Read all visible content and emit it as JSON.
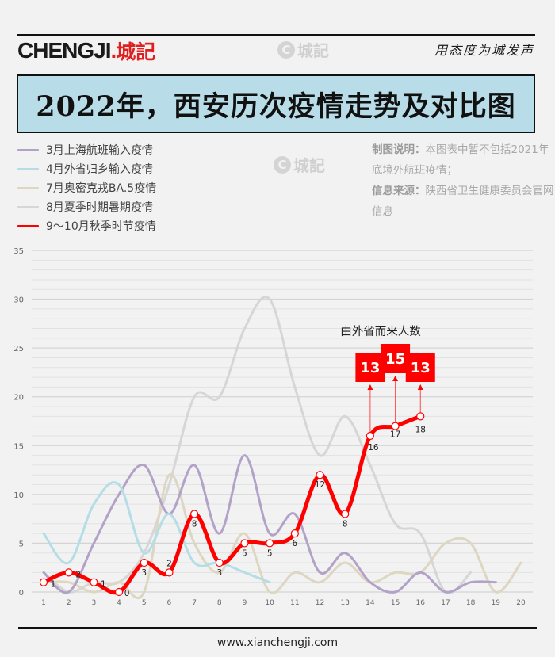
{
  "header": {
    "logo_en": "CHENGJI",
    "logo_dot": ".",
    "logo_cn": "城記",
    "watermark_icon": "C",
    "watermark_text": "城記",
    "slogan": "用态度为城发声"
  },
  "title": "2022年，西安历次疫情走势及对比图",
  "notes": {
    "label1": "制图说明：",
    "text1": "本图表中暂不包括2021年底境外航班疫情；",
    "label2": "信息来源：",
    "text2": "陕西省卫生健康委员会官网信息"
  },
  "legend": [
    {
      "label": "3月上海航班输入疫情",
      "color": "#b3a2c8"
    },
    {
      "label": "4月外省归乡输入疫情",
      "color": "#b4dde6"
    },
    {
      "label": "7月奥密克戎BA.5疫情",
      "color": "#ddd6c1"
    },
    {
      "label": "8月夏季时期暑期疫情",
      "color": "#d6d6d6"
    },
    {
      "label": "9～10月秋季时节疫情",
      "color": "#ff0000"
    }
  ],
  "annotation": {
    "title": "由外省而来人数",
    "boxes": [
      {
        "x": 14,
        "value": "13"
      },
      {
        "x": 15,
        "value": "15"
      },
      {
        "x": 16,
        "value": "13"
      }
    ]
  },
  "footer": "www.xianchengji.com",
  "chart_data": {
    "type": "line",
    "title": "2022年，西安历次疫情走势及对比图",
    "xlabel": "",
    "ylabel": "",
    "x": [
      1,
      2,
      3,
      4,
      5,
      6,
      7,
      8,
      9,
      10,
      11,
      12,
      13,
      14,
      15,
      16,
      17,
      18,
      19,
      20
    ],
    "ylim": [
      0,
      35
    ],
    "yticks": [
      0,
      5,
      10,
      15,
      20,
      25,
      30,
      35
    ],
    "grid": true,
    "minor_grid_step": 1,
    "legend_position": "top-left",
    "smooth": true,
    "series": [
      {
        "name": "3月上海航班输入疫情",
        "color": "#b3a2c8",
        "values": [
          2,
          0,
          5,
          10,
          13,
          8,
          13,
          6,
          14,
          6,
          8,
          2,
          4,
          1,
          0,
          2,
          0,
          1,
          1,
          null
        ]
      },
      {
        "name": "4月外省归乡输入疫情",
        "color": "#b4dde6",
        "values": [
          6,
          3,
          9,
          11,
          4,
          8,
          3,
          3,
          2,
          1,
          null,
          null,
          null,
          null,
          null,
          null,
          null,
          null,
          null,
          null
        ]
      },
      {
        "name": "7月奥密克戎BA.5疫情",
        "color": "#ddd6c1",
        "values": [
          1,
          1,
          0,
          1,
          0,
          12,
          5,
          2,
          6,
          0,
          2,
          1,
          3,
          1,
          2,
          2,
          5,
          5,
          0,
          3
        ]
      },
      {
        "name": "8月夏季时期暑期疫情",
        "color": "#d6d6d6",
        "values": [
          2,
          0,
          1,
          1,
          4,
          11,
          20,
          20,
          27,
          30,
          21,
          14,
          18,
          13,
          7,
          6,
          0,
          2,
          null,
          null
        ]
      },
      {
        "name": "9～10月秋季时节疫情",
        "color": "#ff0000",
        "values": [
          1,
          2,
          1,
          0,
          3,
          2,
          8,
          3,
          5,
          5,
          6,
          12,
          8,
          16,
          17,
          18,
          null,
          null,
          null,
          null
        ],
        "data_labels": true
      }
    ],
    "annotations": [
      {
        "text": "由外省而来人数",
        "points": [
          {
            "x": 14,
            "label": "13"
          },
          {
            "x": 15,
            "label": "15"
          },
          {
            "x": 16,
            "label": "13"
          }
        ]
      }
    ]
  }
}
